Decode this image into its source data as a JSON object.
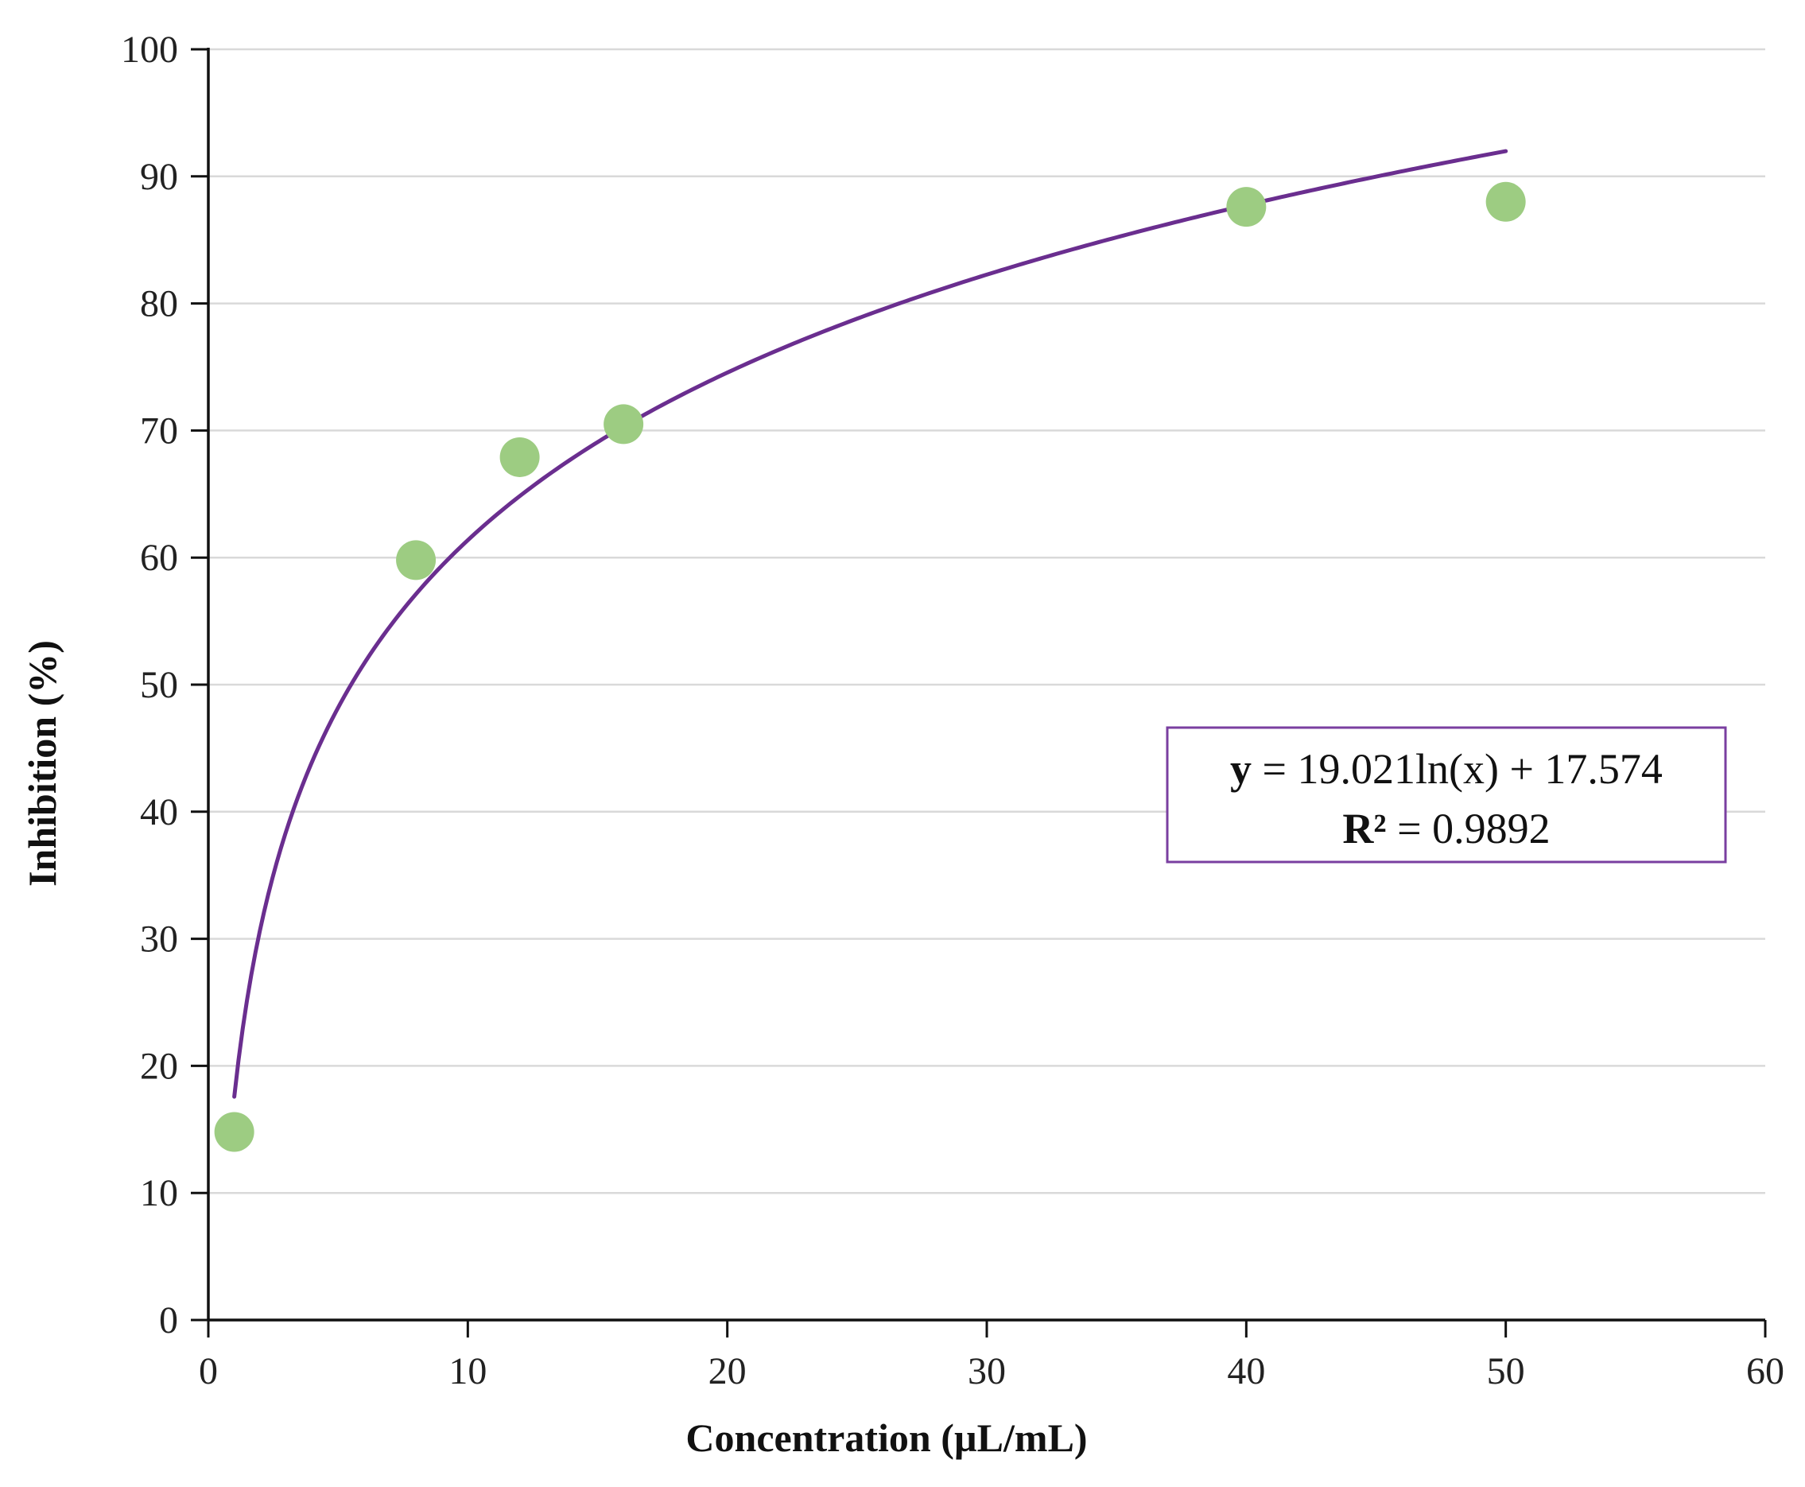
{
  "chart_data": {
    "type": "scatter",
    "xlabel": "Concentration (µL/mL)",
    "ylabel": "Inhibition (%)",
    "xlim": [
      0,
      60
    ],
    "ylim": [
      0,
      100
    ],
    "x_ticks": [
      "0",
      "10",
      "20",
      "30",
      "40",
      "50",
      "60"
    ],
    "y_ticks": [
      "0",
      "10",
      "20",
      "30",
      "40",
      "50",
      "60",
      "70",
      "80",
      "90",
      "100"
    ],
    "grid": "horizontal",
    "series": [
      {
        "x": [
          1,
          8,
          12,
          16,
          40,
          50
        ],
        "y": [
          14.8,
          59.8,
          67.9,
          70.5,
          87.6,
          88.0
        ],
        "color": "#9dcc82"
      }
    ],
    "trendline": {
      "type": "logarithmic",
      "a": 19.021,
      "b": 17.574,
      "x_range": [
        1,
        50
      ],
      "color": "#6a2e8f"
    },
    "annotation": {
      "equation_var": "y",
      "equation_rest": " = 19.021ln(x)  + 17.574",
      "r2_label": "R²",
      "r2_rest": " = 0.9892",
      "border_color": "#7a3fa0"
    }
  }
}
